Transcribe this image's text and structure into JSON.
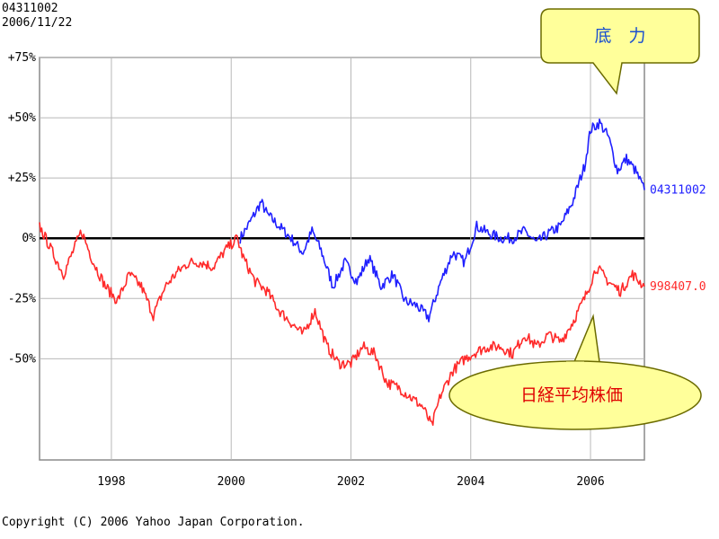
{
  "header": {
    "code": "04311002",
    "date": "2006/11/22"
  },
  "footer": {
    "copyright": "Copyright (C) 2006 Yahoo Japan Corporation."
  },
  "colors": {
    "series_a": "#2020ff",
    "series_b": "#ff2a2a",
    "grid": "#b8b8b8",
    "zero_line": "#000000",
    "callout_fill": "#ffff9a",
    "callout_stroke": "#6b6b00",
    "callout_a_text": "#1a4fcf",
    "callout_b_text": "#e00000"
  },
  "chart_data": {
    "type": "line",
    "x_ticks": [
      "1998",
      "2000",
      "2002",
      "2004",
      "2006"
    ],
    "y_ticks": [
      "+75%",
      "+50%",
      "+25%",
      "0%",
      "-25%",
      "-50%"
    ],
    "ylim": [
      -92,
      75
    ],
    "xlim": [
      1996.8,
      2006.9
    ],
    "grid": true,
    "series": [
      {
        "name": "04311002",
        "label": "04311002",
        "color_key": "series_a",
        "x": [
          2000.15,
          2000.3,
          2000.5,
          2000.6,
          2000.8,
          2001.0,
          2001.2,
          2001.35,
          2001.5,
          2001.7,
          2001.9,
          2002.1,
          2002.3,
          2002.5,
          2002.7,
          2002.9,
          2003.1,
          2003.3,
          2003.5,
          2003.7,
          2003.9,
          2004.1,
          2004.3,
          2004.5,
          2004.7,
          2004.9,
          2005.1,
          2005.3,
          2005.5,
          2005.7,
          2005.9,
          2006.0,
          2006.15,
          2006.3,
          2006.45,
          2006.6,
          2006.75,
          2006.9
        ],
        "y": [
          0,
          6,
          15,
          10,
          5,
          0,
          -6,
          3,
          -5,
          -20,
          -10,
          -18,
          -8,
          -20,
          -15,
          -26,
          -28,
          -33,
          -18,
          -6,
          -10,
          5,
          2,
          0,
          0,
          3,
          -2,
          2,
          5,
          15,
          30,
          45,
          48,
          42,
          28,
          33,
          28,
          20
        ]
      },
      {
        "name": "日経平均株価",
        "label": "998407.0",
        "color_key": "series_b",
        "x": [
          1996.8,
          1997.0,
          1997.2,
          1997.5,
          1997.7,
          1997.9,
          1998.1,
          1998.3,
          1998.5,
          1998.7,
          1998.9,
          1999.1,
          1999.3,
          1999.5,
          1999.7,
          1999.9,
          2000.1,
          2000.2,
          2000.4,
          2000.6,
          2000.8,
          2001.0,
          2001.2,
          2001.4,
          2001.6,
          2001.8,
          2002.0,
          2002.2,
          2002.4,
          2002.6,
          2002.8,
          2003.0,
          2003.2,
          2003.35,
          2003.5,
          2003.7,
          2003.9,
          2004.1,
          2004.3,
          2004.5,
          2004.7,
          2004.9,
          2005.1,
          2005.3,
          2005.5,
          2005.7,
          2005.9,
          2006.1,
          2006.3,
          2006.5,
          2006.7,
          2006.9
        ],
        "y": [
          5,
          -5,
          -15,
          3,
          -10,
          -20,
          -26,
          -15,
          -20,
          -32,
          -20,
          -14,
          -10,
          -10,
          -12,
          -5,
          0,
          -8,
          -18,
          -22,
          -30,
          -35,
          -40,
          -30,
          -45,
          -52,
          -52,
          -45,
          -48,
          -60,
          -62,
          -66,
          -70,
          -78,
          -65,
          -55,
          -50,
          -47,
          -45,
          -45,
          -48,
          -40,
          -45,
          -40,
          -43,
          -35,
          -25,
          -12,
          -18,
          -22,
          -15,
          -20
        ]
      }
    ],
    "annotations": [
      {
        "text": "底　力",
        "target_series": "04311002"
      },
      {
        "text": "日経平均株価",
        "target_series": "日経平均株価"
      }
    ]
  }
}
